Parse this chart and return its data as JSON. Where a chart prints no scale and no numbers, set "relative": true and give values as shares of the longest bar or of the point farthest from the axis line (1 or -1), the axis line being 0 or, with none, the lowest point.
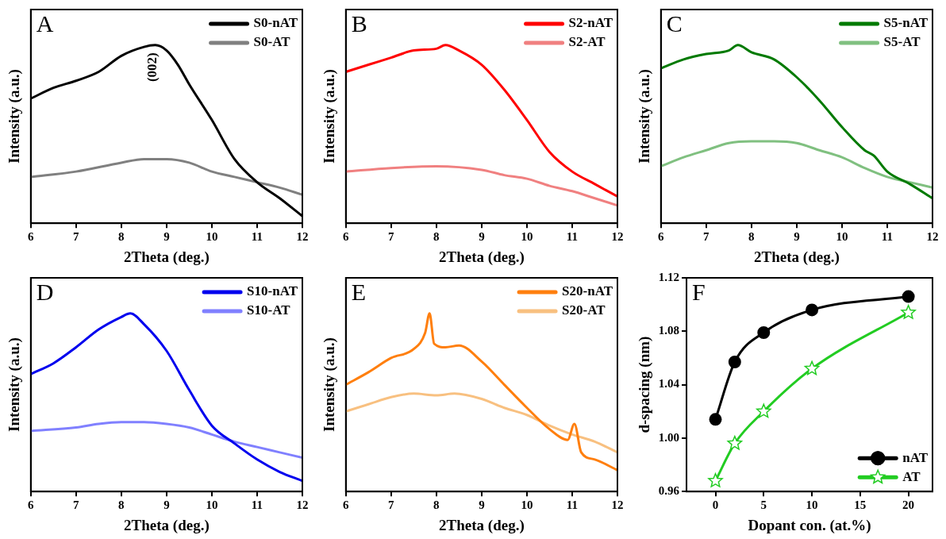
{
  "chart_data": [
    {
      "type": "line",
      "title": "A",
      "xlabel": "2Theta (deg.)",
      "ylabel": "Intensity (a.u.)",
      "relative": true,
      "xlim": [
        6,
        12
      ],
      "xticks": [
        6,
        7,
        8,
        9,
        10,
        11,
        12
      ],
      "legend": "top right",
      "annotations": [
        "(002)"
      ],
      "series": [
        {
          "name": "S0-nAT",
          "color": "#000000",
          "x": [
            6,
            6.5,
            7,
            7.5,
            8,
            8.5,
            8.75,
            9,
            9.25,
            9.5,
            10,
            10.5,
            11,
            11.5,
            12
          ],
          "values": [
            0.7,
            0.76,
            0.8,
            0.85,
            0.94,
            0.99,
            1.0,
            0.97,
            0.89,
            0.78,
            0.58,
            0.36,
            0.23,
            0.14,
            0.04
          ]
        },
        {
          "name": "S0-AT",
          "color": "#808080",
          "x": [
            6,
            7,
            8,
            8.5,
            9,
            9.5,
            10,
            10.5,
            11,
            11.5,
            12
          ],
          "values": [
            0.26,
            0.29,
            0.34,
            0.36,
            0.36,
            0.34,
            0.29,
            0.26,
            0.23,
            0.2,
            0.16
          ]
        }
      ]
    },
    {
      "type": "line",
      "title": "B",
      "xlabel": "2Theta (deg.)",
      "ylabel": "Intensity (a.u.)",
      "relative": true,
      "xlim": [
        6,
        12
      ],
      "xticks": [
        6,
        7,
        8,
        9,
        10,
        11,
        12
      ],
      "legend": "top right",
      "series": [
        {
          "name": "S2-nAT",
          "color": "#ff0000",
          "x": [
            6,
            6.5,
            7,
            7.5,
            8,
            8.2,
            8.5,
            9,
            9.5,
            10,
            10.5,
            11,
            11.5,
            12
          ],
          "values": [
            0.85,
            0.89,
            0.93,
            0.97,
            0.98,
            1.0,
            0.97,
            0.89,
            0.75,
            0.58,
            0.4,
            0.29,
            0.22,
            0.15
          ]
        },
        {
          "name": "S2-AT",
          "color": "#f08080",
          "x": [
            6,
            7,
            8,
            9,
            9.5,
            10,
            10.5,
            11,
            11.5,
            12
          ],
          "values": [
            0.29,
            0.31,
            0.32,
            0.3,
            0.27,
            0.25,
            0.21,
            0.18,
            0.14,
            0.1
          ]
        }
      ]
    },
    {
      "type": "line",
      "title": "C",
      "xlabel": "2Theta (deg.)",
      "ylabel": "Intensity (a.u.)",
      "relative": true,
      "xlim": [
        6,
        12
      ],
      "xticks": [
        6,
        7,
        8,
        9,
        10,
        11,
        12
      ],
      "legend": "top right",
      "series": [
        {
          "name": "S5-nAT",
          "color": "#007a00",
          "x": [
            6,
            6.5,
            7,
            7.5,
            7.7,
            8,
            8.5,
            9,
            9.5,
            10,
            10.5,
            10.7,
            11,
            11.5,
            12
          ],
          "values": [
            0.87,
            0.92,
            0.95,
            0.97,
            1.0,
            0.96,
            0.92,
            0.82,
            0.69,
            0.54,
            0.41,
            0.38,
            0.29,
            0.22,
            0.14
          ]
        },
        {
          "name": "S5-AT",
          "color": "#80c080",
          "x": [
            6,
            6.5,
            7,
            7.5,
            8,
            8.5,
            9,
            9.5,
            10,
            10.5,
            11,
            11.5,
            12
          ],
          "values": [
            0.32,
            0.37,
            0.41,
            0.45,
            0.46,
            0.46,
            0.45,
            0.41,
            0.37,
            0.31,
            0.26,
            0.23,
            0.2
          ]
        }
      ]
    },
    {
      "type": "line",
      "title": "D",
      "xlabel": "2Theta (deg.)",
      "ylabel": "Intensity (a.u.)",
      "relative": true,
      "xlim": [
        6,
        12
      ],
      "xticks": [
        6,
        7,
        8,
        9,
        10,
        11,
        12
      ],
      "legend": "top right",
      "series": [
        {
          "name": "S10-nAT",
          "color": "#0000ee",
          "x": [
            6,
            6.5,
            7,
            7.5,
            8,
            8.2,
            8.5,
            9,
            9.5,
            10,
            10.5,
            11,
            11.5,
            12
          ],
          "values": [
            0.66,
            0.72,
            0.81,
            0.91,
            0.98,
            1.0,
            0.94,
            0.79,
            0.57,
            0.37,
            0.27,
            0.18,
            0.11,
            0.06
          ]
        },
        {
          "name": "S10-AT",
          "color": "#8080ff",
          "x": [
            6,
            7,
            7.5,
            8,
            8.5,
            9,
            9.5,
            10,
            10.5,
            11,
            11.5,
            12
          ],
          "values": [
            0.34,
            0.36,
            0.38,
            0.39,
            0.39,
            0.38,
            0.36,
            0.32,
            0.28,
            0.25,
            0.22,
            0.19
          ]
        }
      ]
    },
    {
      "type": "line",
      "title": "E",
      "xlabel": "2Theta (deg.)",
      "ylabel": "Intensity (a.u.)",
      "relative": true,
      "xlim": [
        6,
        12
      ],
      "xticks": [
        6,
        7,
        8,
        9,
        10,
        11,
        12
      ],
      "legend": "top right",
      "series": [
        {
          "name": "S20-nAT",
          "color": "#ff7f0e",
          "x": [
            6,
            6.5,
            7,
            7.5,
            7.75,
            7.85,
            7.95,
            8.2,
            8.5,
            9,
            9.5,
            10,
            10.5,
            10.9,
            11.05,
            11.2,
            11.5,
            12
          ],
          "values": [
            0.6,
            0.67,
            0.75,
            0.8,
            0.89,
            1.0,
            0.83,
            0.81,
            0.82,
            0.73,
            0.6,
            0.47,
            0.35,
            0.29,
            0.38,
            0.22,
            0.18,
            0.12
          ]
        },
        {
          "name": "S20-AT",
          "color": "#f8c080",
          "x": [
            6,
            6.5,
            7,
            7.5,
            8,
            8.4,
            9,
            9.5,
            10,
            10.5,
            11,
            11.5,
            12
          ],
          "values": [
            0.45,
            0.49,
            0.53,
            0.55,
            0.54,
            0.55,
            0.52,
            0.47,
            0.43,
            0.37,
            0.32,
            0.28,
            0.22
          ]
        }
      ]
    },
    {
      "type": "line",
      "title": "F",
      "xlabel": "Dopant con. (at.%)",
      "ylabel": "d-spacing (nm)",
      "xlim": [
        -3,
        22.5
      ],
      "xticks": [
        0,
        5,
        10,
        15,
        20
      ],
      "ylim": [
        0.96,
        1.12
      ],
      "yticks": [
        0.96,
        {
          "value": 1,
          "label": "1.00"
        },
        1.04,
        1.08,
        1.12
      ],
      "legend": "bottom right",
      "x": [
        0,
        2,
        5,
        10,
        20
      ],
      "series": [
        {
          "name": "nAT",
          "color": "#000000",
          "marker": "circle",
          "values": [
            1.014,
            1.057,
            1.079,
            1.096,
            1.106
          ]
        },
        {
          "name": "AT",
          "color": "#22cc22",
          "marker": "star",
          "values": [
            0.968,
            0.996,
            1.02,
            1.052,
            1.094
          ]
        }
      ]
    }
  ]
}
